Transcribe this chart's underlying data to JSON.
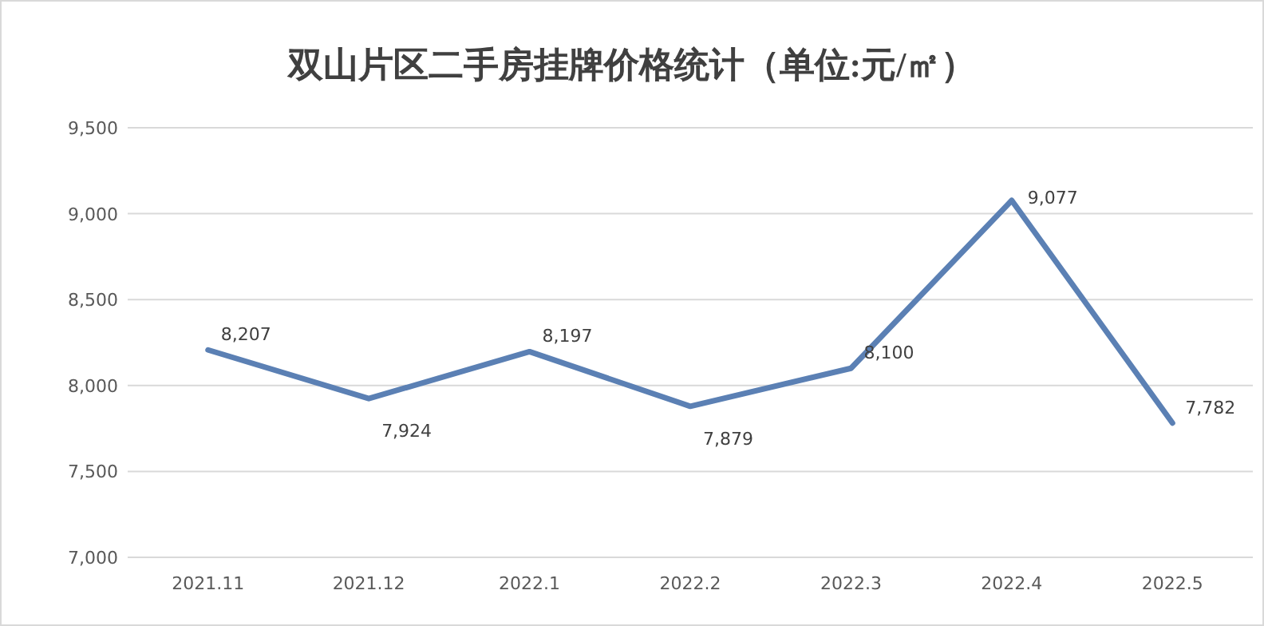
{
  "chart_data": {
    "type": "line",
    "title": "双山片区二手房挂牌价格统计（单位:元/㎡）",
    "categories": [
      "2021.11",
      "2021.12",
      "2022.1",
      "2022.2",
      "2022.3",
      "2022.4",
      "2022.5"
    ],
    "series": [
      {
        "color": "#5b80b4",
        "values": [
          8207,
          7924,
          8197,
          7879,
          8100,
          9077,
          7782
        ],
        "value_labels": [
          "8,207",
          "7,924",
          "8,197",
          "7,879",
          "8,100",
          "9,077",
          "7,782"
        ]
      }
    ],
    "ylim": [
      7000,
      9500
    ],
    "yticks": [
      {
        "value": 7000,
        "label": "7,000"
      },
      {
        "value": 7500,
        "label": "7,500"
      },
      {
        "value": 8000,
        "label": "8,000"
      },
      {
        "value": 8500,
        "label": "8,500"
      },
      {
        "value": 9000,
        "label": "9,000"
      },
      {
        "value": 9500,
        "label": "9,500"
      }
    ],
    "grid": "y",
    "marker": "none",
    "line_style": "solid"
  }
}
